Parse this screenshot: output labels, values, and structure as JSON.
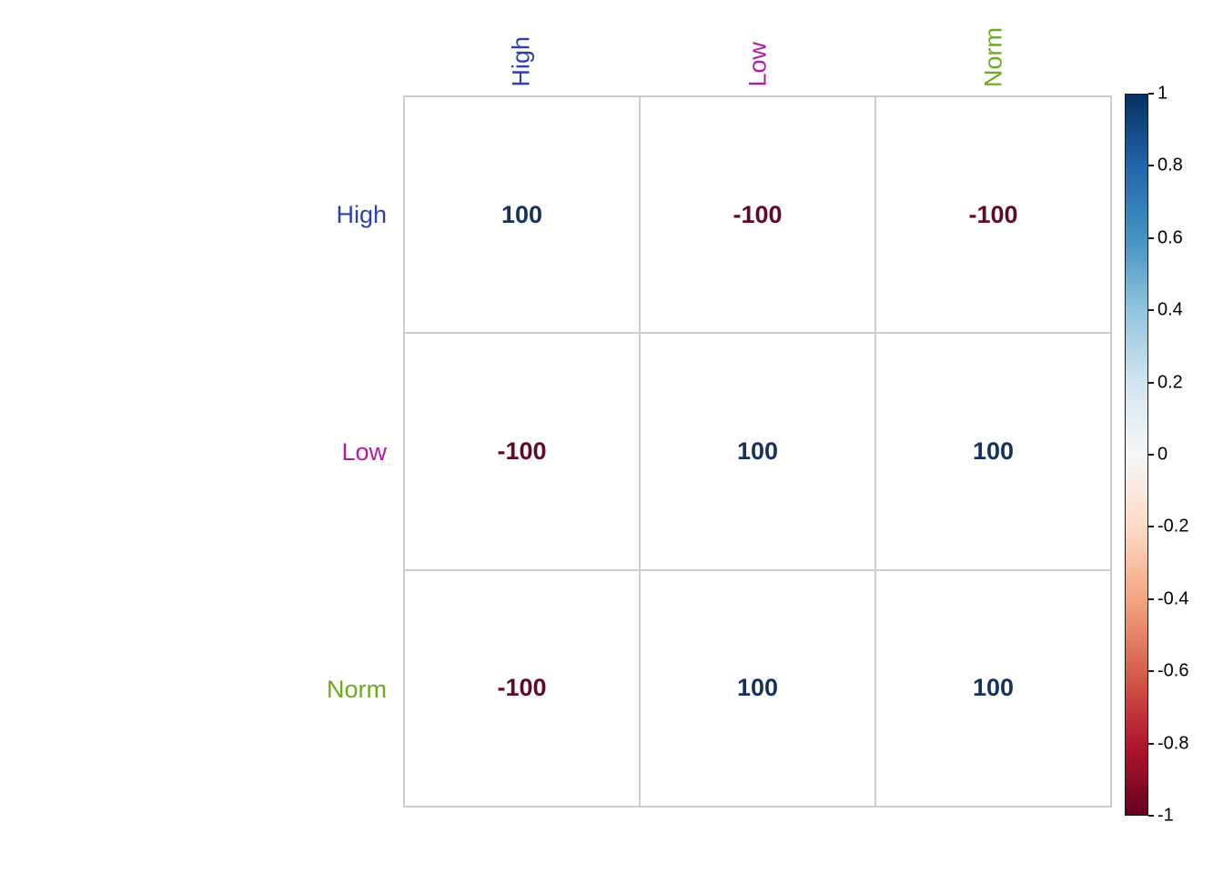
{
  "chart_data": {
    "type": "heatmap",
    "variables": [
      "High",
      "Low",
      "Norm"
    ],
    "variable_colors": [
      "#2e3fad",
      "#b11aa6",
      "#6faa1e"
    ],
    "matrix": [
      [
        100,
        -100,
        -100
      ],
      [
        -100,
        100,
        100
      ],
      [
        -100,
        100,
        100
      ]
    ],
    "positive_text_color": "#16315f",
    "negative_text_color": "#5e0b23",
    "grid_color": "#cdcdcd",
    "cell_background": "#ffffff",
    "colorbar": {
      "min": -1,
      "max": 1,
      "tick_labels": [
        "1",
        "0.8",
        "0.6",
        "0.4",
        "0.2",
        "0",
        "-0.2",
        "-0.4",
        "-0.6",
        "-0.8",
        "-1"
      ],
      "gradient_top_to_bottom": [
        "#053061",
        "#2166ac",
        "#4393c3",
        "#92c5de",
        "#d1e5f0",
        "#f7f7f7",
        "#fddbc7",
        "#f4a582",
        "#d6604d",
        "#b2182b",
        "#67001f"
      ]
    }
  }
}
